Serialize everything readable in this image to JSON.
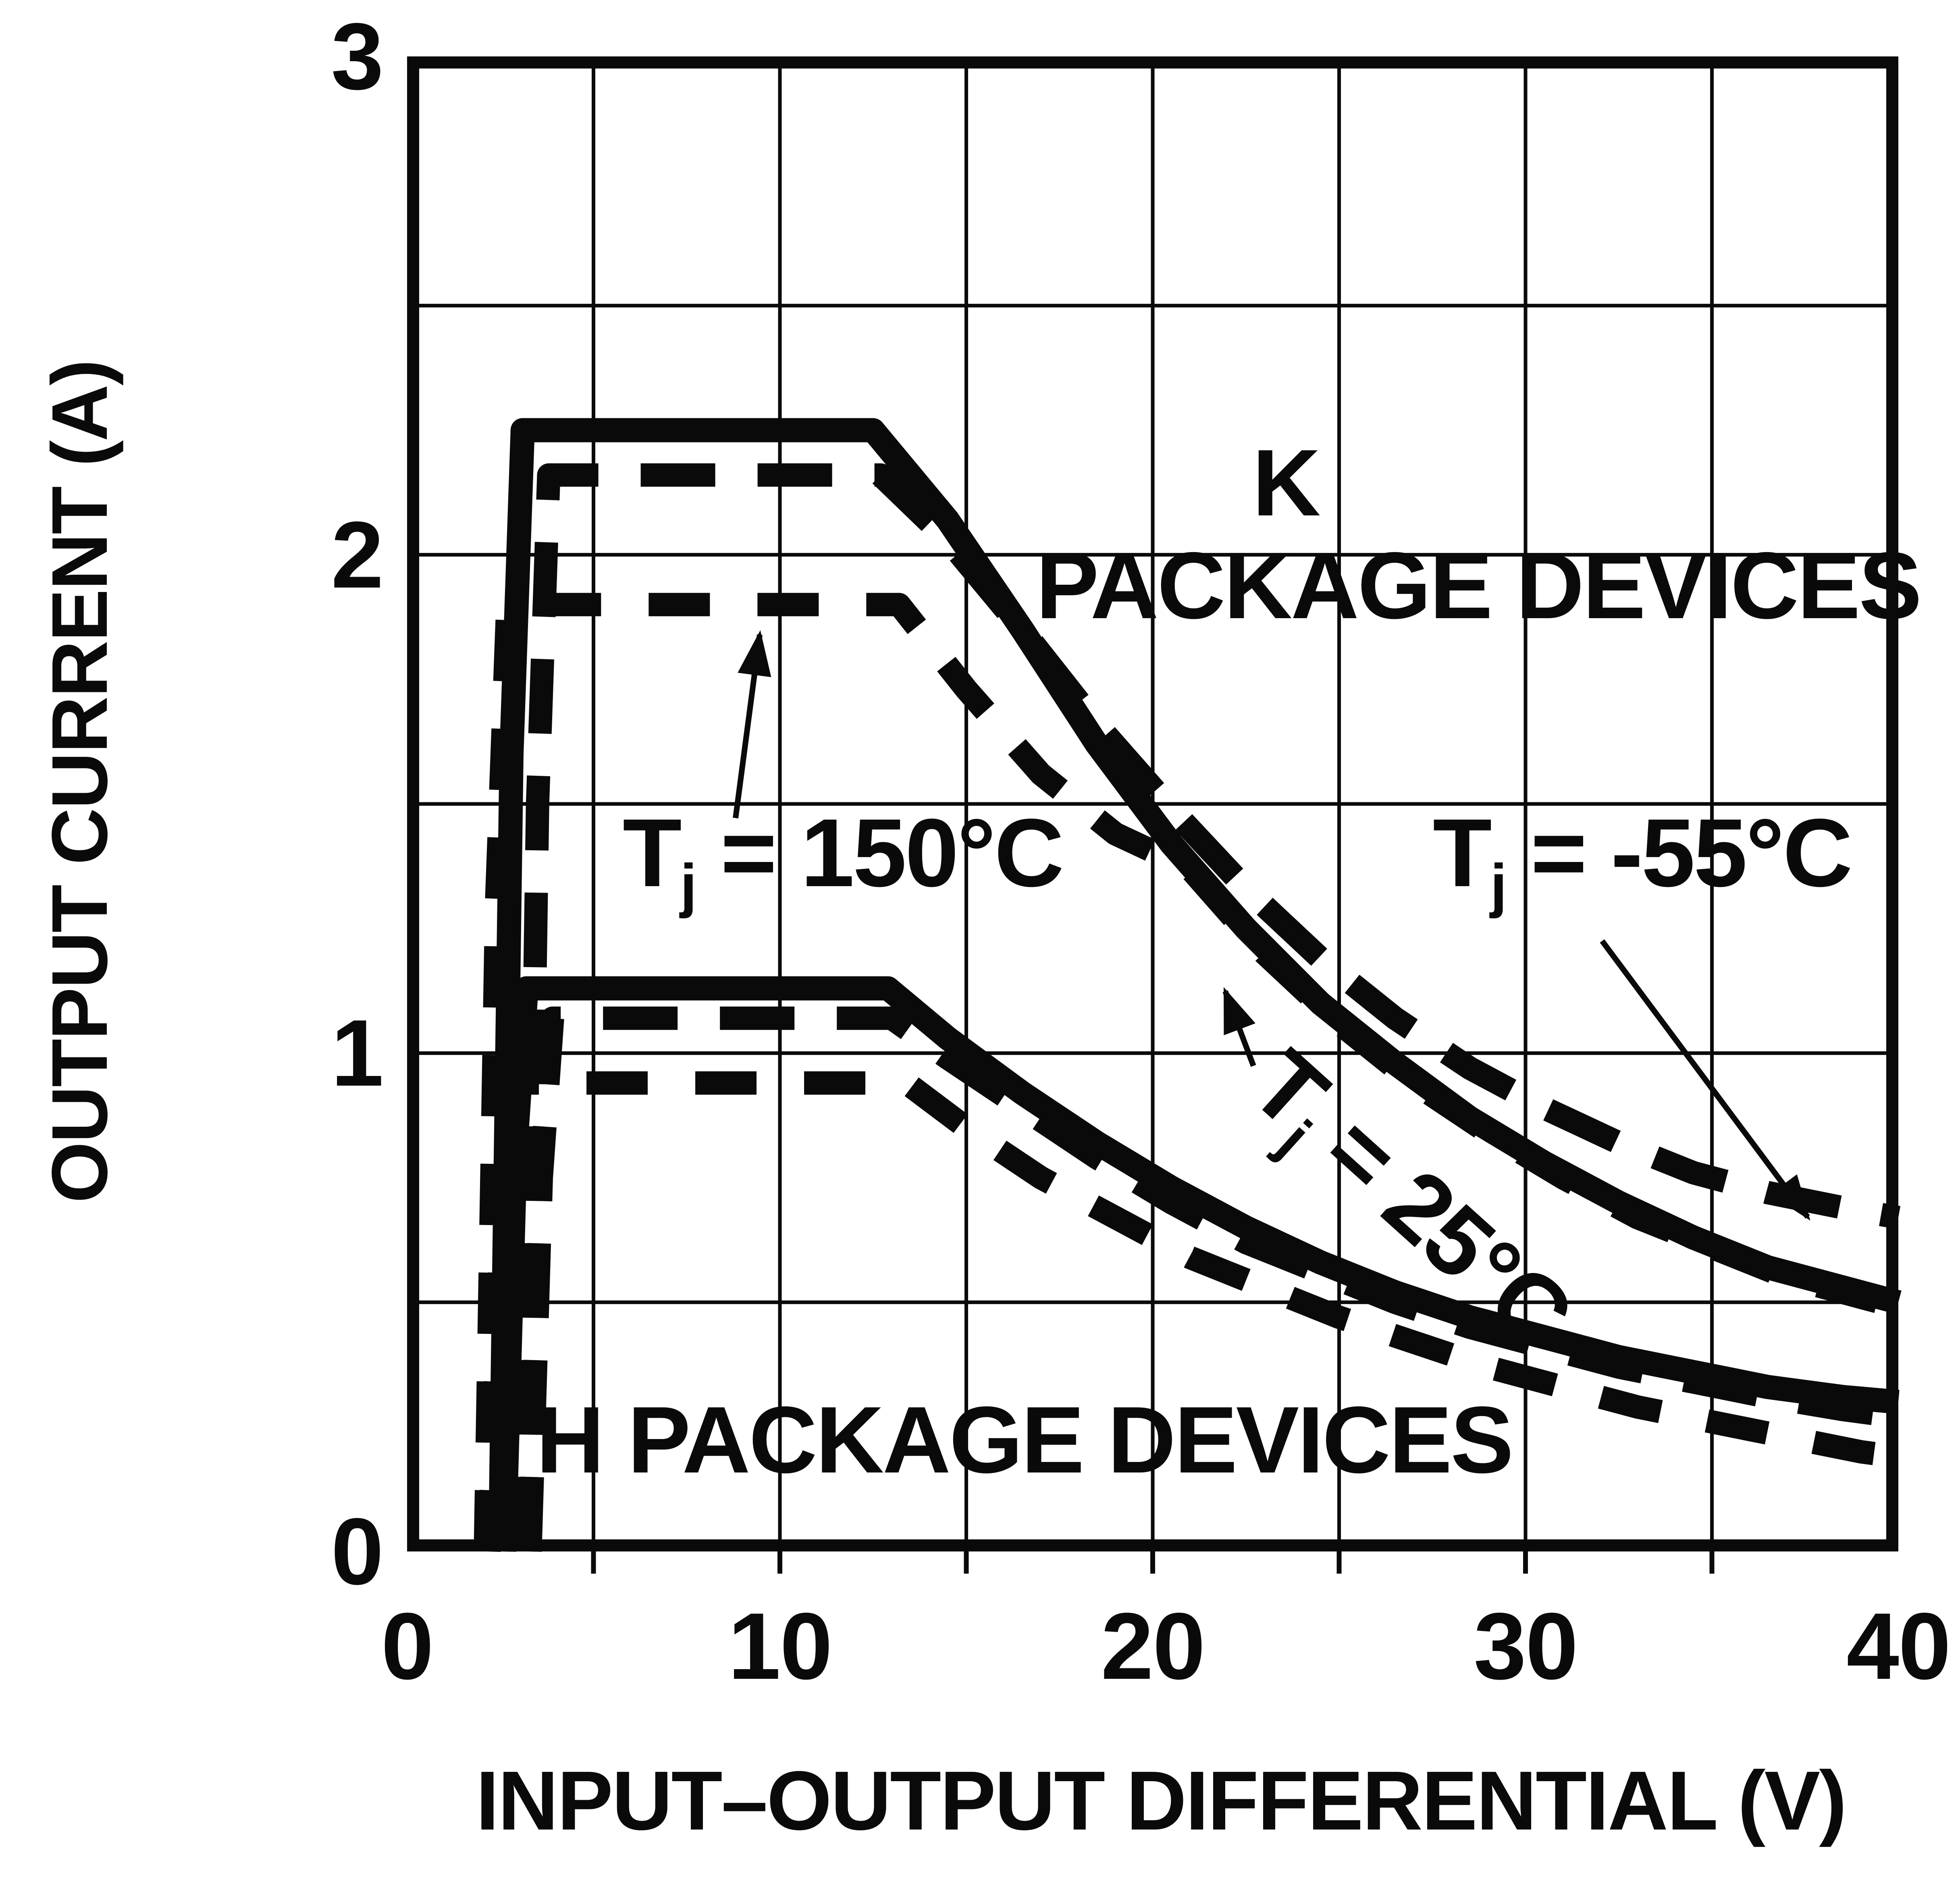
{
  "figure": {
    "paper_color": "#ffffff",
    "ink_color": "#0a0a0a",
    "y_axis": {
      "title": "OUTPUT CURRENT (A)",
      "ticks": [
        "3",
        "2",
        "1",
        "0"
      ]
    },
    "x_axis": {
      "title": "INPUT–OUTPUT DIFFERENTIAL (V)",
      "ticks": [
        "0",
        "10",
        "20",
        "30",
        "40"
      ]
    },
    "annotations": {
      "k_package": {
        "line1": "K",
        "line2": "PACKAGE DEVICES"
      },
      "h_package": {
        "text": "H PACKAGE DEVICES"
      },
      "tj_150": {
        "base": "T",
        "sub": "j",
        "rest": " = 150°C"
      },
      "tj_m55": {
        "base": "T",
        "sub": "j",
        "rest": " = -55°C"
      },
      "tj_25": {
        "base": "T",
        "sub": "j",
        "rest": " = 25°C"
      }
    }
  },
  "chart_data": {
    "type": "line",
    "title": "",
    "xlabel": "INPUT–OUTPUT DIFFERENTIAL (V)",
    "ylabel": "OUTPUT CURRENT (A)",
    "xlim": [
      0,
      40
    ],
    "ylim": [
      0,
      3
    ],
    "x_ticks": [
      0,
      10,
      20,
      30,
      40
    ],
    "y_ticks": [
      3,
      2,
      1,
      0
    ],
    "x_grid_step": 5,
    "y_grid_step": 0.5,
    "grid": true,
    "legend_position": "inline-annotations",
    "series": [
      {
        "name": "K package, Tj = 150°C",
        "package": "K",
        "tj": "150°C",
        "style": "dashed",
        "dash": "short",
        "points": [
          [
            2.1,
            0
          ],
          [
            2.4,
            1.3
          ],
          [
            2.7,
            1.9
          ],
          [
            13.2,
            1.9
          ],
          [
            15,
            1.73
          ],
          [
            17,
            1.56
          ],
          [
            19,
            1.44
          ],
          [
            21,
            1.37
          ],
          [
            23,
            1.2
          ],
          [
            25,
            1.06
          ],
          [
            27,
            0.94
          ],
          [
            29,
            0.84
          ],
          [
            31,
            0.75
          ],
          [
            33,
            0.67
          ],
          [
            35,
            0.61
          ],
          [
            37,
            0.55
          ],
          [
            39,
            0.51
          ],
          [
            40,
            0.49
          ]
        ]
      },
      {
        "name": "K package, Tj = -55°C",
        "package": "K",
        "tj": "-55°C",
        "style": "dashed",
        "dash": "long",
        "points": [
          [
            3.2,
            0
          ],
          [
            3.5,
            1.5
          ],
          [
            3.8,
            2.16
          ],
          [
            12.7,
            2.16
          ],
          [
            14.5,
            2.03
          ],
          [
            16.5,
            1.85
          ],
          [
            18.5,
            1.66
          ],
          [
            20.5,
            1.49
          ],
          [
            22.5,
            1.33
          ],
          [
            24.5,
            1.19
          ],
          [
            26.5,
            1.07
          ],
          [
            28.5,
            0.97
          ],
          [
            30.5,
            0.89
          ],
          [
            32.5,
            0.82
          ],
          [
            34.5,
            0.76
          ],
          [
            36.5,
            0.72
          ],
          [
            38.5,
            0.69
          ],
          [
            40,
            0.67
          ]
        ]
      },
      {
        "name": "K package, Tj = 25°C",
        "package": "K",
        "tj": "25°C",
        "style": "solid",
        "dash": "none",
        "points": [
          [
            2.5,
            0
          ],
          [
            2.8,
            1.6
          ],
          [
            3.1,
            2.25
          ],
          [
            12.5,
            2.25
          ],
          [
            14.5,
            2.07
          ],
          [
            16.5,
            1.85
          ],
          [
            18.5,
            1.62
          ],
          [
            20.5,
            1.42
          ],
          [
            22.5,
            1.25
          ],
          [
            24.5,
            1.1
          ],
          [
            26.5,
            0.98
          ],
          [
            28.5,
            0.87
          ],
          [
            30.5,
            0.78
          ],
          [
            32.5,
            0.7
          ],
          [
            34.5,
            0.63
          ],
          [
            36.5,
            0.57
          ],
          [
            38.5,
            0.53
          ],
          [
            40,
            0.5
          ]
        ]
      },
      {
        "name": "H package, Tj = 150°C",
        "package": "H",
        "tj": "150°C",
        "style": "dashed",
        "dash": "short",
        "points": [
          [
            2.2,
            0
          ],
          [
            2.5,
            0.6
          ],
          [
            2.8,
            0.94
          ],
          [
            13.4,
            0.94
          ],
          [
            15,
            0.85
          ],
          [
            17,
            0.75
          ],
          [
            19,
            0.67
          ],
          [
            21,
            0.59
          ],
          [
            23,
            0.53
          ],
          [
            25,
            0.47
          ],
          [
            27,
            0.42
          ],
          [
            29,
            0.37
          ],
          [
            31,
            0.33
          ],
          [
            33,
            0.29
          ],
          [
            35,
            0.26
          ],
          [
            37,
            0.23
          ],
          [
            39,
            0.2
          ],
          [
            40,
            0.19
          ]
        ]
      },
      {
        "name": "H package, Tj = -55°C",
        "package": "H",
        "tj": "-55°C",
        "style": "dashed",
        "dash": "long",
        "points": [
          [
            3.3,
            0
          ],
          [
            3.6,
            0.75
          ],
          [
            3.9,
            1.07
          ],
          [
            13,
            1.07
          ],
          [
            14.5,
            0.99
          ],
          [
            16.5,
            0.89
          ],
          [
            18.5,
            0.79
          ],
          [
            20.5,
            0.7
          ],
          [
            22.5,
            0.62
          ],
          [
            24.5,
            0.56
          ],
          [
            26.5,
            0.5
          ],
          [
            28.5,
            0.45
          ],
          [
            30.5,
            0.41
          ],
          [
            32.5,
            0.37
          ],
          [
            34.5,
            0.34
          ],
          [
            36.5,
            0.31
          ],
          [
            38.5,
            0.285
          ],
          [
            40,
            0.27
          ]
        ]
      },
      {
        "name": "H package, Tj = 25°C",
        "package": "H",
        "tj": "25°C",
        "style": "solid",
        "dash": "none",
        "points": [
          [
            2.6,
            0
          ],
          [
            2.9,
            0.8
          ],
          [
            3.2,
            1.13
          ],
          [
            12.9,
            1.13
          ],
          [
            14.5,
            1.03
          ],
          [
            16.5,
            0.92
          ],
          [
            18.5,
            0.82
          ],
          [
            20.5,
            0.73
          ],
          [
            22.5,
            0.65
          ],
          [
            24.5,
            0.58
          ],
          [
            26.5,
            0.52
          ],
          [
            28.5,
            0.47
          ],
          [
            30.5,
            0.43
          ],
          [
            32.5,
            0.39
          ],
          [
            34.5,
            0.36
          ],
          [
            36.5,
            0.33
          ],
          [
            38.5,
            0.31
          ],
          [
            40,
            0.3
          ]
        ]
      }
    ]
  }
}
